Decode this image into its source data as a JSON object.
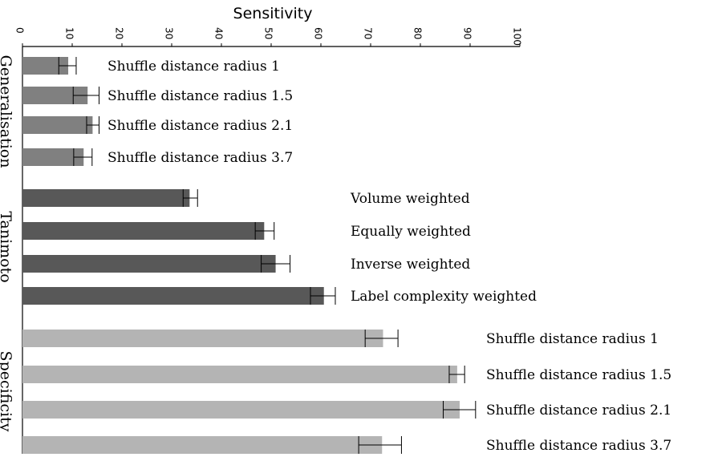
{
  "chart_data": {
    "type": "bar",
    "orientation": "horizontal",
    "title": "",
    "xlabel": "Sensitivity",
    "xlim": [
      0,
      100
    ],
    "x_ticks": [
      0,
      10,
      20,
      30,
      40,
      50,
      60,
      70,
      80,
      90,
      100
    ],
    "grid": false,
    "groups": [
      {
        "name": "Generalisation",
        "color": "#808080",
        "bars": [
          {
            "label": "Shuffle distance radius 1",
            "value": 9.2,
            "err_low": 7.3,
            "err_high": 10.8
          },
          {
            "label": "Shuffle distance radius 1.5",
            "value": 13.1,
            "err_low": 10.2,
            "err_high": 15.4
          },
          {
            "label": "Shuffle distance radius 2.1",
            "value": 14.1,
            "err_low": 12.9,
            "err_high": 15.4
          },
          {
            "label": "Shuffle distance radius 3.7",
            "value": 12.3,
            "err_low": 10.3,
            "err_high": 14.0
          }
        ]
      },
      {
        "name": "Tanimoto",
        "color": "#585858",
        "bars": [
          {
            "label": "Volume weighted",
            "value": 33.6,
            "err_low": 32.3,
            "err_high": 35.2
          },
          {
            "label": "Equally weighted",
            "value": 48.6,
            "err_low": 46.8,
            "err_high": 50.6
          },
          {
            "label": "Inverse weighted",
            "value": 50.9,
            "err_low": 48.0,
            "err_high": 53.8
          },
          {
            "label": "Label complexity weighted",
            "value": 60.6,
            "err_low": 57.9,
            "err_high": 62.9
          }
        ]
      },
      {
        "name": "Specificity",
        "color": "#b4b4b4",
        "bars": [
          {
            "label": "Shuffle distance radius 1",
            "value": 72.5,
            "err_low": 68.9,
            "err_high": 75.5
          },
          {
            "label": "Shuffle distance radius 1.5",
            "value": 87.4,
            "err_low": 85.8,
            "err_high": 88.9
          },
          {
            "label": "Shuffle distance radius 2.1",
            "value": 87.9,
            "err_low": 84.6,
            "err_high": 91.1
          },
          {
            "label": "Shuffle distance radius 3.7",
            "value": 72.3,
            "err_low": 67.6,
            "err_high": 76.2
          }
        ]
      }
    ]
  }
}
